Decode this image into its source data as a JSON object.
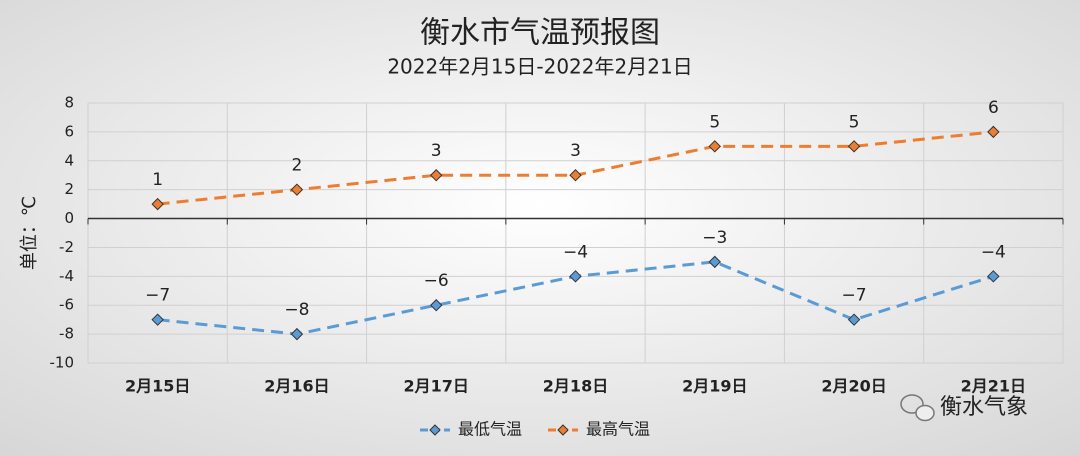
{
  "chart_data": {
    "type": "line",
    "title": "衡水市气温预报图",
    "subtitle": "2022年2月15日-2022年2月21日",
    "y_label": "单位：℃",
    "categories": [
      "2月15日",
      "2月16日",
      "2月17日",
      "2月18日",
      "2月19日",
      "2月20日",
      "2月21日"
    ],
    "series": [
      {
        "name": "最低气温",
        "color": "#5b9bd5",
        "values": [
          -7,
          -8,
          -6,
          -4,
          -3,
          -7,
          -4
        ],
        "value_labels": [
          "−7",
          "−8",
          "−6",
          "−4",
          "−3",
          "−7",
          "−4"
        ]
      },
      {
        "name": "最高气温",
        "color": "#ed7d31",
        "values": [
          1,
          2,
          3,
          3,
          5,
          5,
          6
        ]
      }
    ],
    "ylim": [
      -10,
      8
    ],
    "yticks": [
      -10,
      -8,
      -6,
      -4,
      -2,
      0,
      2,
      4,
      6,
      8
    ],
    "grid": true,
    "legend": "bottom",
    "watermark": "衡水气象"
  }
}
